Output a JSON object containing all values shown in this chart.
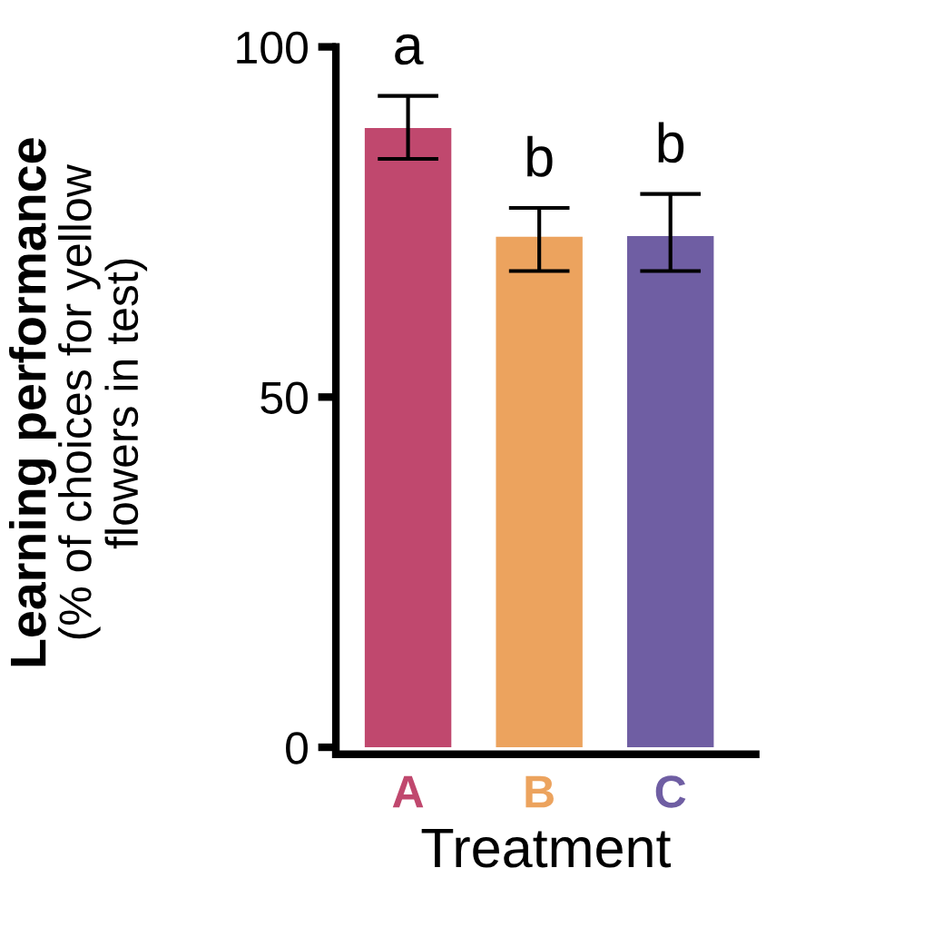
{
  "chart_data": {
    "type": "bar",
    "categories": [
      "A",
      "B",
      "C"
    ],
    "values": [
      88.4,
      72.9,
      73
    ],
    "colors": [
      "#c0486e",
      "#eca35e",
      "#6f5ea3"
    ],
    "errors": [
      [
        84,
        93
      ],
      [
        68,
        77
      ],
      [
        68,
        79
      ]
    ],
    "xlabel": "Treatment",
    "ylabel": "Learning performance\n(% of choices for yellow\nflowers in test)",
    "ylim": [
      -1,
      100
    ],
    "yticks": [
      0,
      50,
      100
    ],
    "grid": false,
    "legend": false,
    "annotations": [
      "a",
      "b",
      "b"
    ]
  }
}
